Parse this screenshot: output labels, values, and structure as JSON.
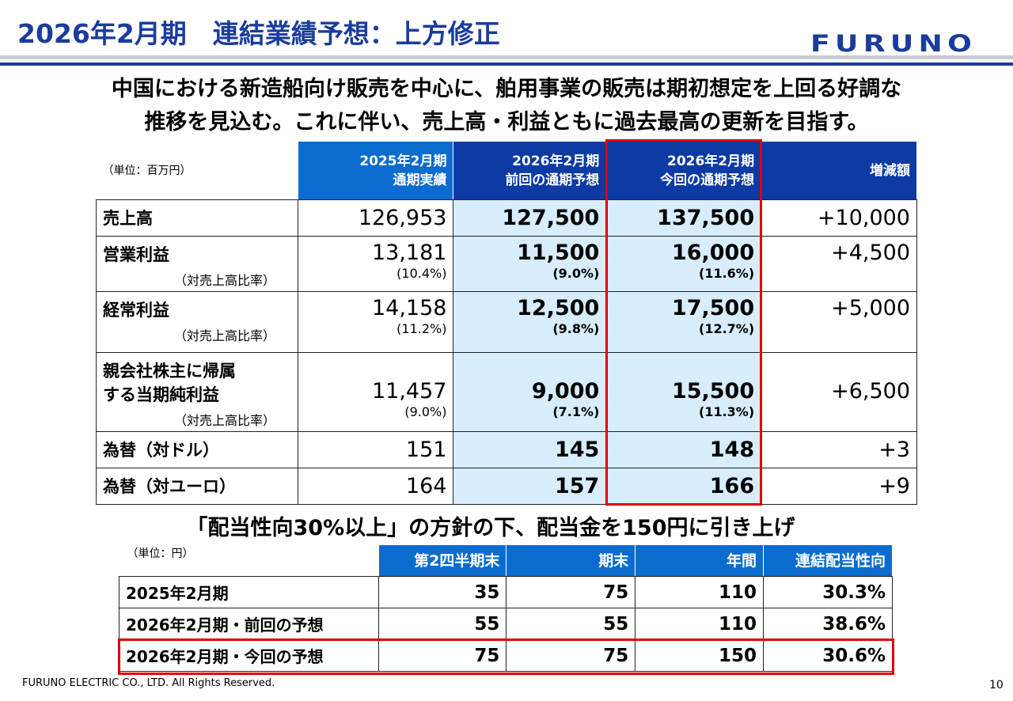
{
  "header": {
    "title": "2026年2月期　連結業績予想：上方修正",
    "logo": "FURUNO"
  },
  "headline": [
    "中国における新造船向け販売を中心に、舶用事業の販売は期初想定を上回る好調な",
    "推移を見込む。これに伴い、売上高・利益ともに過去最高の更新を目指す。"
  ],
  "forecast_table": {
    "unit": "（単位：百万円）",
    "columns": [
      {
        "l1": "2025年2月期",
        "l2": "通期実績"
      },
      {
        "l1": "2026年2月期",
        "l2": "前回の通期予想"
      },
      {
        "l1": "2026年2月期",
        "l2": "今回の通期予想"
      },
      {
        "l1": "増減額",
        "l2": ""
      }
    ],
    "rows": [
      {
        "label": "売上高",
        "sub": "",
        "v": [
          "126,953",
          "127,500",
          "137,500",
          "+10,000"
        ],
        "r": [
          "",
          "",
          "",
          ""
        ]
      },
      {
        "label": "営業利益",
        "sub": "（対売上高比率）",
        "v": [
          "13,181",
          "11,500",
          "16,000",
          "+4,500"
        ],
        "r": [
          "(10.4%)",
          "(9.0%)",
          "(11.6%)",
          ""
        ]
      },
      {
        "label": "経常利益",
        "sub": "（対売上高比率）",
        "v": [
          "14,158",
          "12,500",
          "17,500",
          "+5,000"
        ],
        "r": [
          "(11.2%)",
          "(9.8%)",
          "(12.7%)",
          ""
        ]
      },
      {
        "label": "親会社株主に帰属\nする当期純利益",
        "sub": "（対売上高比率）",
        "v": [
          "11,457",
          "9,000",
          "15,500",
          "+6,500"
        ],
        "r": [
          "(9.0%)",
          "(7.1%)",
          "(11.3%)",
          ""
        ]
      },
      {
        "label": "為替（対ドル）",
        "sub": "",
        "v": [
          "151",
          "145",
          "148",
          "+3"
        ],
        "r": [
          "",
          "",
          "",
          ""
        ]
      },
      {
        "label": "為替（対ユーロ）",
        "sub": "",
        "v": [
          "164",
          "157",
          "166",
          "+9"
        ],
        "r": [
          "",
          "",
          "",
          ""
        ]
      }
    ]
  },
  "dividend_heading": "「配当性向30%以上」の方針の下、配当金を150円に引き上げ",
  "dividend_table": {
    "unit": "（単位：円）",
    "columns": [
      "第2四半期末",
      "期末",
      "年間",
      "連結配当性向"
    ],
    "rows": [
      {
        "label": "2025年2月期",
        "v": [
          "35",
          "75",
          "110",
          "30.3%"
        ]
      },
      {
        "label": "2026年2月期・前回の予想",
        "v": [
          "55",
          "55",
          "110",
          "38.6%"
        ]
      },
      {
        "label": "2026年2月期・今回の予想",
        "v": [
          "75",
          "75",
          "150",
          "30.6%"
        ]
      }
    ]
  },
  "footer": {
    "copyright": "FURUNO ELECTRIC CO., LTD. All Rights Reserved.",
    "page": "10"
  },
  "colors": {
    "brand": "#1a3c9c",
    "header_blue": "#0a6ccf",
    "header_dark": "#0d3ba3",
    "highlight": "#e00000",
    "light_blue": "#d8edfb"
  }
}
